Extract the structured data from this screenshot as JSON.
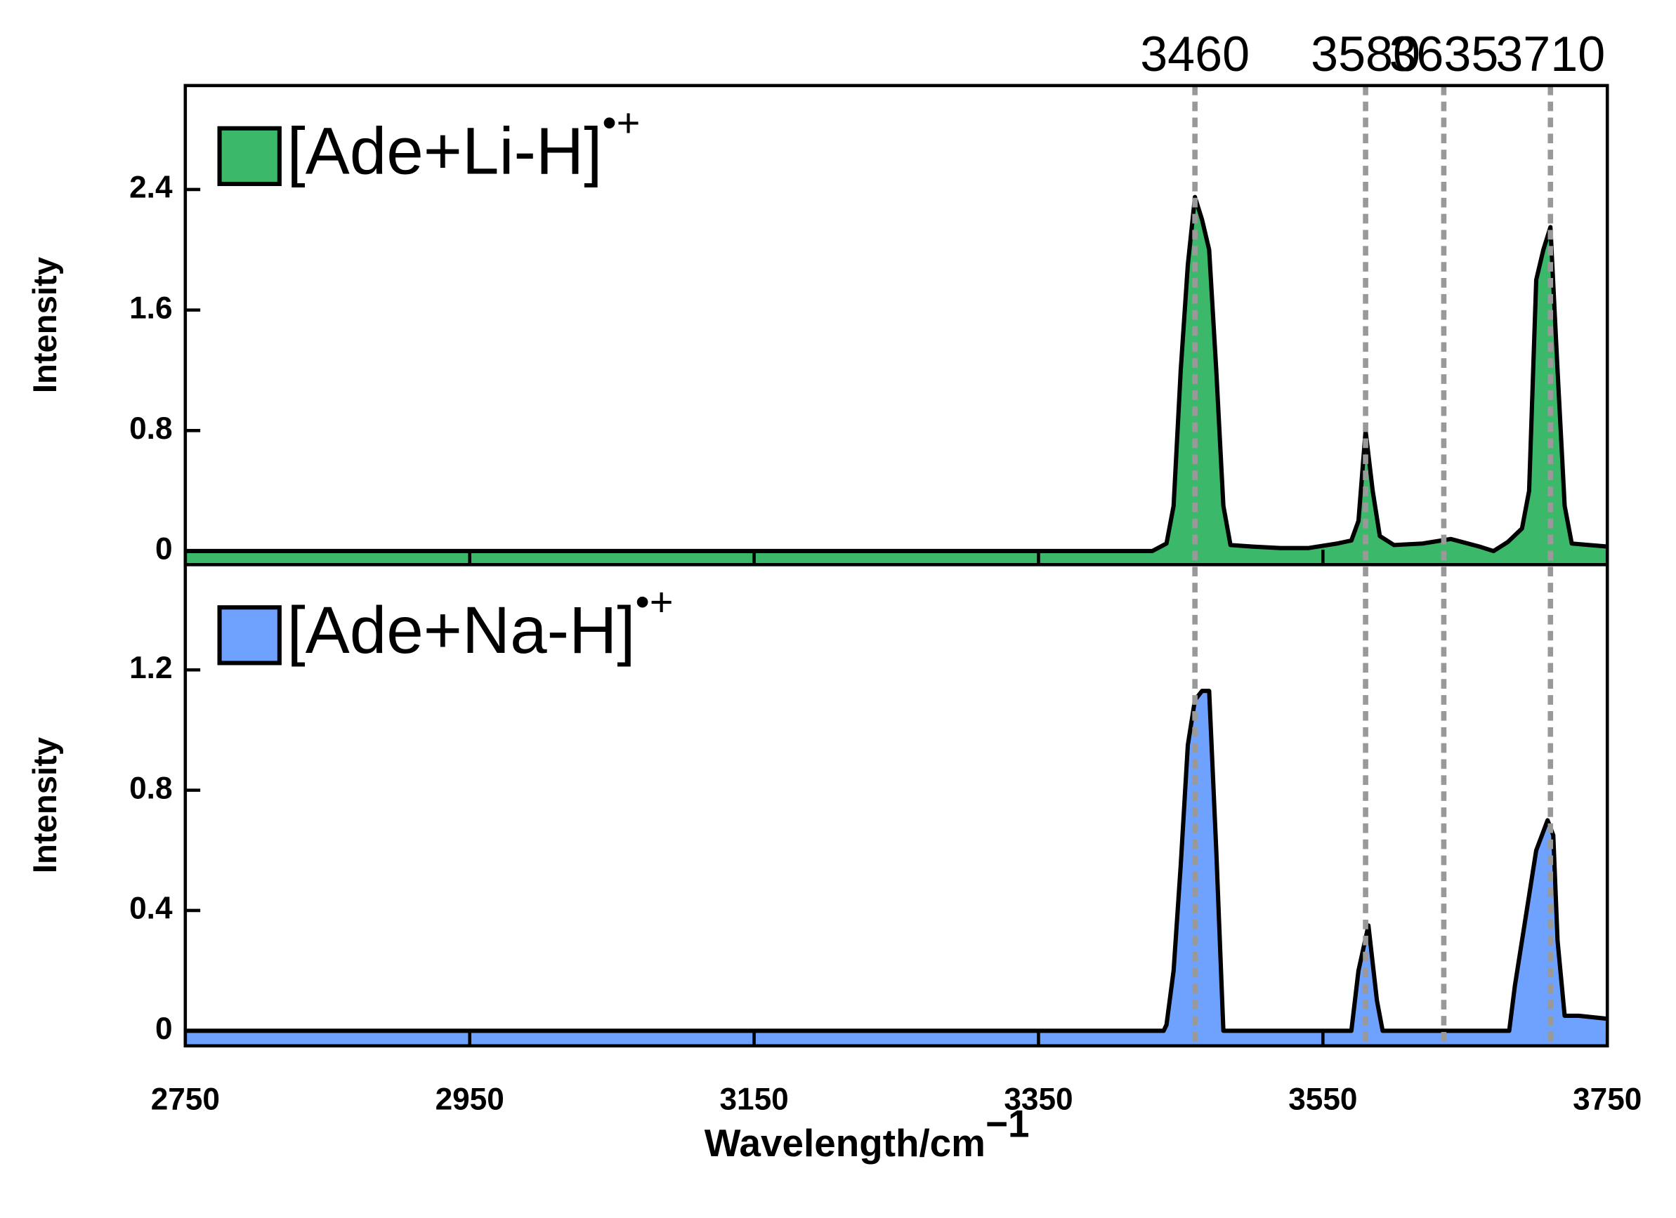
{
  "chart_data": [
    {
      "type": "area",
      "ylabel": "Intensity",
      "ylim": [
        -0.09,
        3.09
      ],
      "yticks": [
        0,
        0.8,
        1.6,
        2.4
      ],
      "xlim": [
        2750,
        3750
      ],
      "vlines": [
        3460,
        3580,
        3635,
        3710
      ],
      "series": [
        {
          "name": "[Ade+Li-H]",
          "name_sup": "•+",
          "color": "#3cb86a",
          "x": [
            2750,
            3430,
            3440,
            3445,
            3450,
            3455,
            3460,
            3465,
            3470,
            3475,
            3480,
            3485,
            3500,
            3520,
            3540,
            3560,
            3570,
            3575,
            3580,
            3585,
            3590,
            3600,
            3620,
            3640,
            3660,
            3670,
            3680,
            3690,
            3695,
            3700,
            3705,
            3710,
            3715,
            3720,
            3725,
            3750
          ],
          "values": [
            0,
            0,
            0.05,
            0.3,
            1.2,
            1.9,
            2.35,
            2.2,
            2.0,
            1.2,
            0.3,
            0.04,
            0.03,
            0.02,
            0.02,
            0.05,
            0.07,
            0.2,
            0.8,
            0.4,
            0.1,
            0.04,
            0.05,
            0.08,
            0.03,
            0,
            0.06,
            0.15,
            0.4,
            1.8,
            2.0,
            2.15,
            1.2,
            0.3,
            0.05,
            0.03
          ]
        }
      ]
    },
    {
      "type": "area",
      "ylabel": "Intensity",
      "xlabel": "Wavelength/cm",
      "xlabel_sup": "−1",
      "ylim": [
        -0.05,
        1.55
      ],
      "yticks": [
        0,
        0.4,
        0.8,
        1.2
      ],
      "xlim": [
        2750,
        3750
      ],
      "xticks": [
        2750,
        2950,
        3150,
        3350,
        3550,
        3750
      ],
      "series": [
        {
          "name": "[Ade+Na-H]",
          "name_sup": "•+",
          "color": "#6fa2ff",
          "x": [
            2750,
            3438,
            3440,
            3445,
            3450,
            3455,
            3460,
            3465,
            3470,
            3475,
            3480,
            3570,
            3575,
            3582,
            3588,
            3592,
            3681,
            3685,
            3690,
            3700,
            3708,
            3712,
            3715,
            3720,
            3730,
            3750
          ],
          "values": [
            0,
            0,
            0.02,
            0.2,
            0.55,
            0.95,
            1.1,
            1.13,
            1.13,
            0.6,
            0,
            0,
            0.2,
            0.35,
            0.1,
            0,
            0,
            0.15,
            0.3,
            0.6,
            0.7,
            0.65,
            0.3,
            0.05,
            0.05,
            0.04
          ]
        }
      ]
    }
  ]
}
